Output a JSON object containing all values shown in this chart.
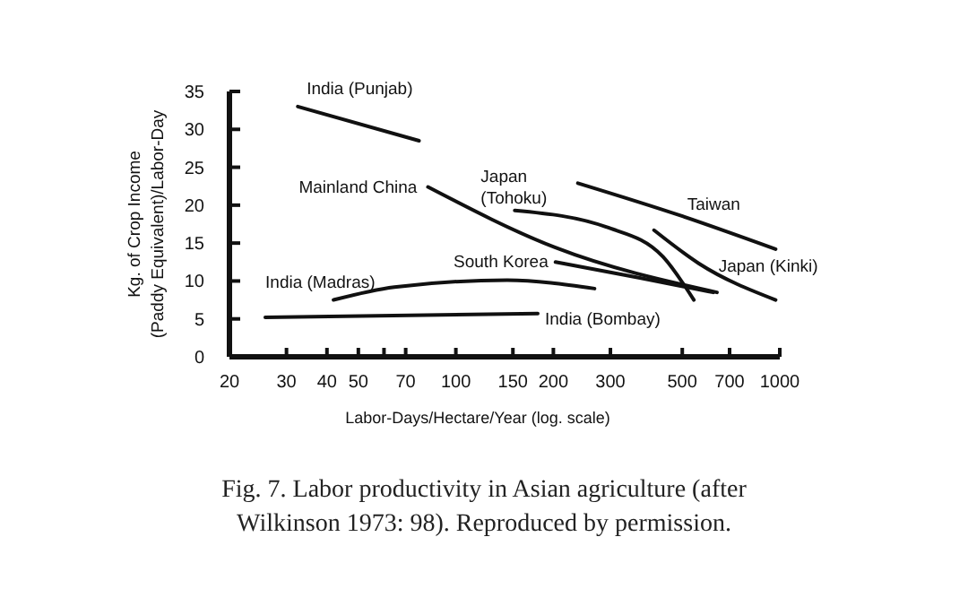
{
  "chart_data": {
    "type": "line",
    "xlabel": "Labor-Days/Hectare/Year (log. scale)",
    "ylabel": "Kg. of Crop Income\n(Paddy Equivalent)/Labor-Day",
    "log": "x",
    "xlim": [
      20,
      1000
    ],
    "ylim": [
      0,
      35
    ],
    "xticks": [
      20,
      30,
      40,
      50,
      {
        "value": 60,
        "label": null
      },
      70,
      100,
      150,
      200,
      300,
      500,
      700,
      1000
    ],
    "yticks": [
      0,
      5,
      10,
      15,
      20,
      25,
      30,
      35
    ],
    "grid": false,
    "legend": false,
    "marker": "none",
    "line_style": "solid",
    "series": [
      {
        "name": "India (Punjab)",
        "color": "#111111",
        "x": [
          32.5,
          77
        ],
        "values": [
          33,
          28.5
        ]
      },
      {
        "name": "Mainland China",
        "color": "#111111",
        "x": [
          82,
          203,
          640
        ],
        "values": [
          22.4,
          14.4,
          8.5
        ]
      },
      {
        "name": "Japan (Tohoku)",
        "color": "#111111",
        "x": [
          152,
          297,
          436,
          543
        ],
        "values": [
          19.3,
          17,
          13.2,
          7.5
        ]
      },
      {
        "name": "Taiwan",
        "color": "#111111",
        "x": [
          238,
          496,
          971
        ],
        "values": [
          22.9,
          18.6,
          14.2
        ]
      },
      {
        "name": "Japan (Kinki)",
        "color": "#111111",
        "x": [
          409,
          563,
          971
        ],
        "values": [
          16.7,
          12.3,
          7.5
        ]
      },
      {
        "name": "South Korea",
        "color": "#111111",
        "x": [
          203,
          370,
          623
        ],
        "values": [
          12.5,
          10.4,
          8.5
        ]
      },
      {
        "name": "India (Madras)",
        "color": "#111111",
        "x": [
          41.9,
          64.6,
          144,
          268
        ],
        "values": [
          7.5,
          9.2,
          10.1,
          9
        ]
      },
      {
        "name": "India (Bombay)",
        "color": "#111111",
        "x": [
          25.8,
          179
        ],
        "values": [
          5.2,
          5.7
        ]
      }
    ],
    "annotations": [
      "Fig. 7. Labor productivity in Asian agriculture (after Wilkinson 1973: 98). Reproduced by permission."
    ]
  }
}
